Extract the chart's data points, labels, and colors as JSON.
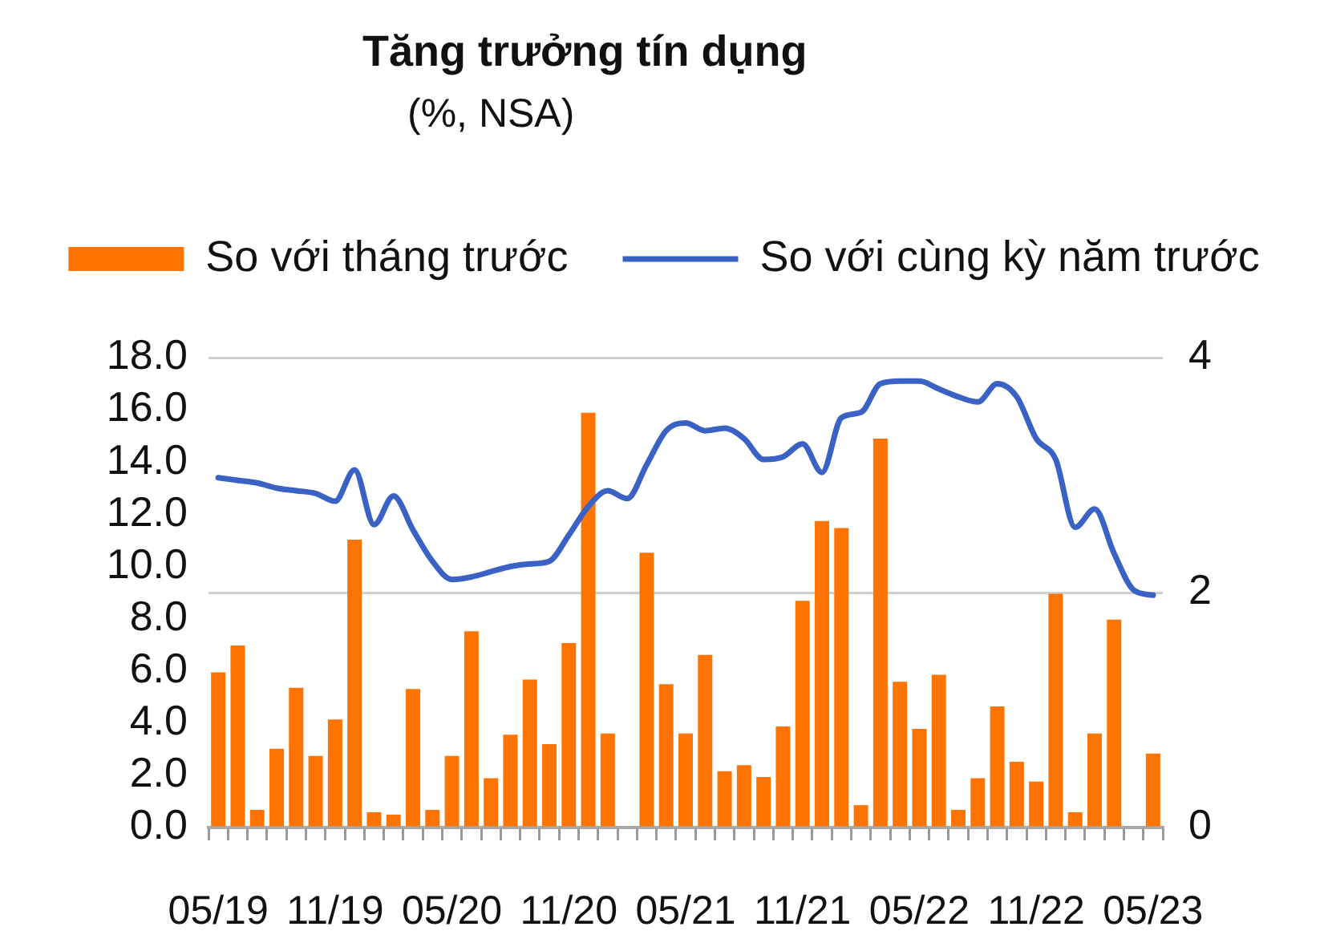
{
  "chart_data": {
    "type": "bar",
    "title": "Tăng trưởng tín dụng",
    "subtitle": "(%, NSA)",
    "categories": [
      "05/19",
      null,
      null,
      null,
      null,
      null,
      "11/19",
      null,
      null,
      null,
      null,
      null,
      "05/20",
      null,
      null,
      null,
      null,
      null,
      "11/20",
      null,
      null,
      null,
      null,
      null,
      "05/21",
      null,
      null,
      null,
      null,
      null,
      "11/21",
      null,
      null,
      null,
      null,
      null,
      "05/22",
      null,
      null,
      null,
      null,
      null,
      "11/22",
      null,
      null,
      null,
      null,
      null,
      "05/23"
    ],
    "series": [
      {
        "name": "So với tháng trước",
        "axis": "y2",
        "color": "#ff7300",
        "values": [
          1.32,
          1.55,
          0.15,
          0.67,
          1.19,
          0.61,
          0.92,
          2.45,
          0.13,
          0.11,
          1.18,
          0.15,
          0.61,
          1.67,
          0.42,
          0.79,
          1.26,
          0.71,
          1.57,
          3.53,
          0.8,
          null,
          2.34,
          1.22,
          0.8,
          1.47,
          0.48,
          0.53,
          0.43,
          0.86,
          1.93,
          2.61,
          2.55,
          0.19,
          3.31,
          1.24,
          0.84,
          1.3,
          0.15,
          0.42,
          1.03,
          0.56,
          0.39,
          1.99,
          0.13,
          0.8,
          1.77,
          null,
          0.63
        ]
      },
      {
        "name": "So với cùng kỳ năm trước",
        "type": "line",
        "color": "#3a62c4",
        "values": [
          13.4,
          13.3,
          13.2,
          13.0,
          12.9,
          12.8,
          12.5,
          13.7,
          11.6,
          12.7,
          11.4,
          10.2,
          9.5,
          9.6,
          9.8,
          10.0,
          10.1,
          10.2,
          11.2,
          12.3,
          12.9,
          12.6,
          13.9,
          15.2,
          15.5,
          15.2,
          15.3,
          14.9,
          14.1,
          14.2,
          14.7,
          13.6,
          15.7,
          15.9,
          17.0,
          17.1,
          17.1,
          16.8,
          16.5,
          16.3,
          17.0,
          16.5,
          14.9,
          14.1,
          11.5,
          12.2,
          10.5,
          9.1,
          8.9
        ]
      }
    ],
    "ylim": [
      0,
      18
    ],
    "yticks": [
      {
        "value": 0,
        "label": "0.0"
      },
      {
        "value": 2,
        "label": "2.0"
      },
      {
        "value": 4,
        "label": "4.0"
      },
      {
        "value": 6,
        "label": "6.0"
      },
      {
        "value": 8,
        "label": "8.0"
      },
      {
        "value": 10,
        "label": "10.0"
      },
      {
        "value": 12,
        "label": "12.0"
      },
      {
        "value": 14,
        "label": "14.0"
      },
      {
        "value": 16,
        "label": "16.0"
      },
      {
        "value": 18,
        "label": "18.0"
      }
    ],
    "y2lim": [
      0,
      4
    ],
    "y2ticks": [
      0,
      2,
      4
    ],
    "grid": "y2",
    "legend": "top",
    "marker": "none",
    "line_style": "solid"
  }
}
